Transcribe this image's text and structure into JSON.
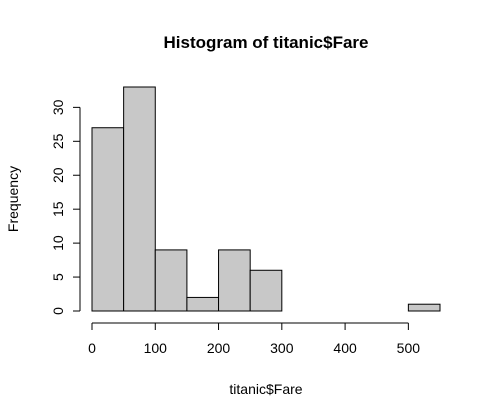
{
  "chart_data": {
    "type": "bar",
    "title": "Histogram of titanic$Fare",
    "xlabel": "titanic$Fare",
    "ylabel": "Frequency",
    "bins": [
      {
        "from": 0,
        "to": 50,
        "count": 27
      },
      {
        "from": 50,
        "to": 100,
        "count": 33
      },
      {
        "from": 100,
        "to": 150,
        "count": 9
      },
      {
        "from": 150,
        "to": 200,
        "count": 2
      },
      {
        "from": 200,
        "to": 250,
        "count": 9
      },
      {
        "from": 250,
        "to": 300,
        "count": 6
      },
      {
        "from": 300,
        "to": 350,
        "count": 0
      },
      {
        "from": 350,
        "to": 400,
        "count": 0
      },
      {
        "from": 400,
        "to": 450,
        "count": 0
      },
      {
        "from": 450,
        "to": 500,
        "count": 0
      },
      {
        "from": 500,
        "to": 550,
        "count": 1
      }
    ],
    "x_ticks": [
      "0",
      "100",
      "200",
      "300",
      "400",
      "500"
    ],
    "y_ticks": [
      "0",
      "5",
      "10",
      "15",
      "20",
      "25",
      "30"
    ],
    "xlim": [
      0,
      550
    ],
    "ylim": [
      0,
      33
    ],
    "grid": false,
    "colors": {
      "bar_fill": "#c8c8c8",
      "bar_stroke": "#000000"
    }
  }
}
